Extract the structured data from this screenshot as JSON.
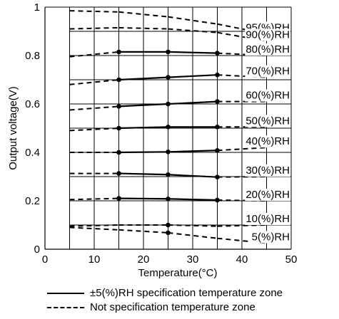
{
  "chart_data": {
    "type": "line",
    "title": "",
    "xlabel": "Temperature(°C)",
    "ylabel": "Output voltage(V)",
    "xlim": [
      0,
      50
    ],
    "ylim": [
      0,
      1
    ],
    "x_ticks": [
      "0",
      "10",
      "20",
      "30",
      "40",
      "50"
    ],
    "y_ticks": [
      "0",
      "0.2",
      "0.4",
      "0.6",
      "0.8",
      "1"
    ],
    "grid": true,
    "legend_position": "bottom",
    "legend": {
      "solid_label": "±5(%)RH specification temperature zone",
      "dashed_label": "Not specification temperature zone"
    },
    "series": [
      {
        "name": "95(%)RH",
        "x": [
          5,
          15,
          25,
          35,
          45
        ],
        "y": [
          0.985,
          0.98,
          0.96,
          0.93,
          0.89
        ],
        "spec": []
      },
      {
        "name": "90(%)RH",
        "x": [
          5,
          15,
          25,
          35,
          45
        ],
        "y": [
          0.91,
          0.915,
          0.91,
          0.895,
          0.86
        ],
        "spec": []
      },
      {
        "name": "80(%)RH",
        "x": [
          5,
          15,
          25,
          35,
          45
        ],
        "y": [
          0.795,
          0.815,
          0.815,
          0.81,
          0.8
        ],
        "spec": [
          1,
          2,
          3
        ]
      },
      {
        "name": "70(%)RH",
        "x": [
          5,
          15,
          25,
          35,
          45
        ],
        "y": [
          0.68,
          0.7,
          0.71,
          0.72,
          0.71
        ],
        "spec": [
          1,
          2,
          3
        ]
      },
      {
        "name": "60(%)RH",
        "x": [
          5,
          15,
          25,
          35,
          45
        ],
        "y": [
          0.575,
          0.59,
          0.6,
          0.61,
          0.61
        ],
        "spec": [
          1,
          2,
          3
        ]
      },
      {
        "name": "50(%)RH",
        "x": [
          5,
          15,
          25,
          35,
          45
        ],
        "y": [
          0.49,
          0.5,
          0.505,
          0.505,
          0.505
        ],
        "spec": [
          1,
          2,
          3
        ]
      },
      {
        "name": "40(%)RH",
        "x": [
          5,
          15,
          25,
          35,
          45
        ],
        "y": [
          0.4,
          0.4,
          0.402,
          0.408,
          0.42
        ],
        "spec": [
          1,
          2,
          3
        ]
      },
      {
        "name": "30(%)RH",
        "x": [
          5,
          15,
          25,
          35,
          45
        ],
        "y": [
          0.313,
          0.313,
          0.308,
          0.298,
          0.3
        ],
        "spec": [
          1,
          2,
          3
        ]
      },
      {
        "name": "20(%)RH",
        "x": [
          5,
          15,
          25,
          35,
          45
        ],
        "y": [
          0.205,
          0.21,
          0.208,
          0.203,
          0.2
        ],
        "spec": [
          1,
          2,
          3
        ]
      },
      {
        "name": "10(%)RH",
        "x": [
          5,
          15,
          25,
          35,
          45
        ],
        "y": [
          0.095,
          0.1,
          0.1,
          0.095,
          0.1
        ],
        "spec": [
          2
        ]
      },
      {
        "name": "5(%)RH",
        "x": [
          5,
          15,
          25,
          35,
          45
        ],
        "y": [
          0.09,
          0.08,
          0.068,
          0.045,
          0.025
        ],
        "spec": [
          2
        ]
      }
    ]
  }
}
